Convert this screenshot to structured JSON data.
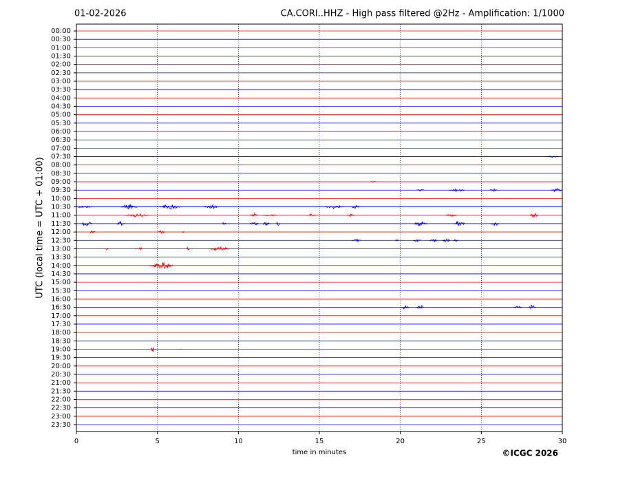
{
  "chart_data": {
    "type": "helicorder",
    "title_left": "01-02-2026",
    "title": "CA.CORI..HHZ - High pass filtered @2Hz - Amplification: 1/1000",
    "xlabel": "time in minutes",
    "ylabel": "UTC (local time = UTC + 01:00)",
    "footer": "©ICGC 2026",
    "categories": [
      "00:00",
      "00:30",
      "01:00",
      "01:30",
      "02:00",
      "02:30",
      "03:00",
      "03:30",
      "04:00",
      "04:30",
      "05:00",
      "05:30",
      "06:00",
      "06:30",
      "07:00",
      "07:30",
      "08:00",
      "08:30",
      "09:00",
      "09:30",
      "10:00",
      "10:30",
      "11:00",
      "11:30",
      "12:00",
      "12:30",
      "13:00",
      "13:30",
      "14:00",
      "14:30",
      "15:00",
      "15:30",
      "16:00",
      "16:30",
      "17:00",
      "17:30",
      "18:00",
      "18:30",
      "19:00",
      "19:30",
      "20:00",
      "20:30",
      "21:00",
      "21:30",
      "22:00",
      "22:30",
      "23:00",
      "23:30"
    ],
    "colors": [
      "#ff0000",
      "#0000ff"
    ],
    "xlim": [
      0,
      30
    ],
    "xticks": [
      0,
      5,
      10,
      15,
      20,
      25,
      30
    ],
    "grid": true,
    "events": [
      {
        "row": 15,
        "start": 29.0,
        "end": 29.8,
        "amplitude": 0.15
      },
      {
        "row": 18,
        "start": 18.1,
        "end": 18.5,
        "amplitude": 0.2
      },
      {
        "row": 19,
        "start": 21.0,
        "end": 21.5,
        "amplitude": 0.15
      },
      {
        "row": 19,
        "start": 23.0,
        "end": 24.0,
        "amplitude": 0.2
      },
      {
        "row": 19,
        "start": 25.5,
        "end": 26.0,
        "amplitude": 0.2
      },
      {
        "row": 19,
        "start": 29.3,
        "end": 30.0,
        "amplitude": 0.25
      },
      {
        "row": 21,
        "start": 0.0,
        "end": 1.0,
        "amplitude": 0.15
      },
      {
        "row": 21,
        "start": 2.7,
        "end": 3.8,
        "amplitude": 0.35
      },
      {
        "row": 21,
        "start": 5.1,
        "end": 6.5,
        "amplitude": 0.35
      },
      {
        "row": 21,
        "start": 7.8,
        "end": 8.8,
        "amplitude": 0.3
      },
      {
        "row": 21,
        "start": 15.3,
        "end": 16.5,
        "amplitude": 0.25
      },
      {
        "row": 21,
        "start": 17.0,
        "end": 17.5,
        "amplitude": 0.3
      },
      {
        "row": 22,
        "start": 3.0,
        "end": 4.5,
        "amplitude": 0.25
      },
      {
        "row": 22,
        "start": 10.7,
        "end": 11.2,
        "amplitude": 0.3
      },
      {
        "row": 22,
        "start": 11.5,
        "end": 12.4,
        "amplitude": 0.2
      },
      {
        "row": 22,
        "start": 14.2,
        "end": 14.8,
        "amplitude": 0.2
      },
      {
        "row": 22,
        "start": 16.7,
        "end": 17.2,
        "amplitude": 0.2
      },
      {
        "row": 22,
        "start": 22.8,
        "end": 23.5,
        "amplitude": 0.2
      },
      {
        "row": 22,
        "start": 28.0,
        "end": 28.5,
        "amplitude": 0.4
      },
      {
        "row": 23,
        "start": 0.2,
        "end": 1.0,
        "amplitude": 0.35
      },
      {
        "row": 23,
        "start": 2.5,
        "end": 3.0,
        "amplitude": 0.35
      },
      {
        "row": 23,
        "start": 9.0,
        "end": 9.3,
        "amplitude": 0.3
      },
      {
        "row": 23,
        "start": 10.7,
        "end": 11.3,
        "amplitude": 0.25
      },
      {
        "row": 23,
        "start": 11.5,
        "end": 12.0,
        "amplitude": 0.35
      },
      {
        "row": 23,
        "start": 12.3,
        "end": 12.6,
        "amplitude": 0.35
      },
      {
        "row": 23,
        "start": 20.8,
        "end": 21.7,
        "amplitude": 0.3
      },
      {
        "row": 23,
        "start": 23.3,
        "end": 24.0,
        "amplitude": 0.4
      },
      {
        "row": 23,
        "start": 25.6,
        "end": 26.1,
        "amplitude": 0.3
      },
      {
        "row": 24,
        "start": 0.8,
        "end": 1.2,
        "amplitude": 0.3
      },
      {
        "row": 24,
        "start": 5.0,
        "end": 5.5,
        "amplitude": 0.3
      },
      {
        "row": 24,
        "start": 6.5,
        "end": 6.7,
        "amplitude": 0.15
      },
      {
        "row": 25,
        "start": 17.0,
        "end": 17.6,
        "amplitude": 0.2
      },
      {
        "row": 25,
        "start": 19.7,
        "end": 19.9,
        "amplitude": 0.2
      },
      {
        "row": 25,
        "start": 20.8,
        "end": 21.3,
        "amplitude": 0.2
      },
      {
        "row": 25,
        "start": 21.8,
        "end": 22.3,
        "amplitude": 0.25
      },
      {
        "row": 25,
        "start": 22.6,
        "end": 23.1,
        "amplitude": 0.35
      },
      {
        "row": 25,
        "start": 23.3,
        "end": 23.6,
        "amplitude": 0.25
      },
      {
        "row": 26,
        "start": 1.8,
        "end": 2.0,
        "amplitude": 0.15
      },
      {
        "row": 26,
        "start": 3.6,
        "end": 4.1,
        "amplitude": 0.25
      },
      {
        "row": 26,
        "start": 6.8,
        "end": 7.0,
        "amplitude": 0.3
      },
      {
        "row": 26,
        "start": 8.2,
        "end": 9.5,
        "amplitude": 0.3
      },
      {
        "row": 28,
        "start": 4.5,
        "end": 6.0,
        "amplitude": 0.5
      },
      {
        "row": 33,
        "start": 20.0,
        "end": 20.6,
        "amplitude": 0.25
      },
      {
        "row": 33,
        "start": 21.0,
        "end": 21.5,
        "amplitude": 0.3
      },
      {
        "row": 33,
        "start": 27.0,
        "end": 27.5,
        "amplitude": 0.25
      },
      {
        "row": 33,
        "start": 27.9,
        "end": 28.4,
        "amplitude": 0.3
      },
      {
        "row": 38,
        "start": 4.6,
        "end": 4.8,
        "amplitude": 0.8
      },
      {
        "row": 38,
        "start": 6.4,
        "end": 6.5,
        "amplitude": 0.4
      }
    ]
  }
}
